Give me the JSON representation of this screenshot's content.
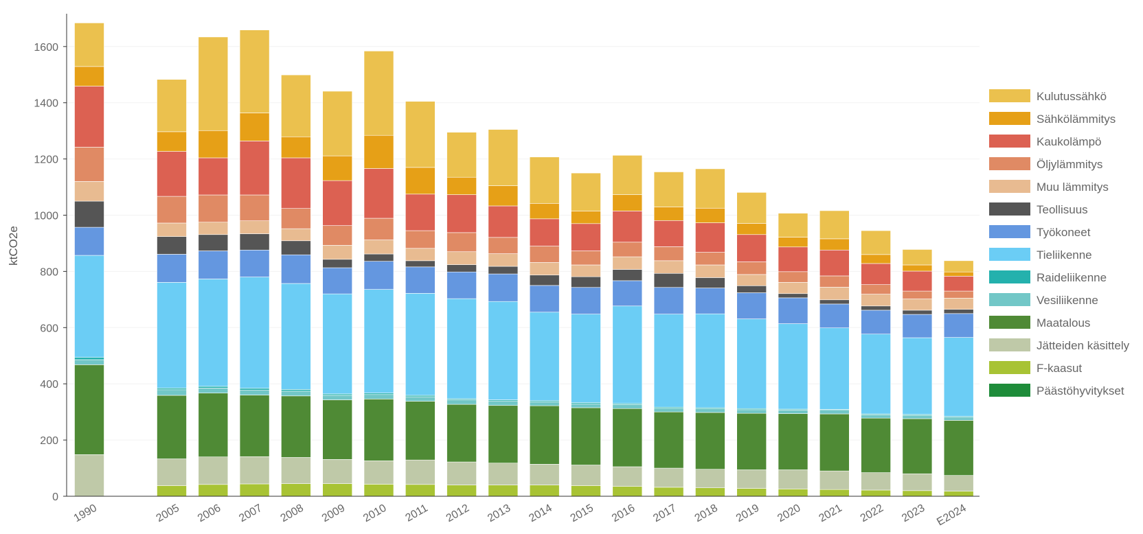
{
  "chart_data": {
    "type": "bar",
    "stacked": true,
    "ylabel": "ktCO2e",
    "ylim": [
      0,
      1700
    ],
    "yticks": [
      0,
      200,
      400,
      600,
      800,
      1000,
      1200,
      1400,
      1600
    ],
    "categories": [
      "1990",
      "2005",
      "2006",
      "2007",
      "2008",
      "2009",
      "2010",
      "2011",
      "2012",
      "2013",
      "2014",
      "2015",
      "2016",
      "2017",
      "2018",
      "2019",
      "2020",
      "2021",
      "2022",
      "2023",
      "E2024"
    ],
    "legend_position": "right",
    "series": [
      {
        "name": "Päästöhyvitykset",
        "color": "#1e8c3a",
        "values": [
          0,
          0,
          0,
          0,
          0,
          0,
          0,
          0,
          0,
          0,
          0,
          0,
          0,
          0,
          0,
          0,
          0,
          0,
          0,
          0,
          0
        ]
      },
      {
        "name": "F-kaasut",
        "color": "#a8c334",
        "values": [
          0,
          38,
          42,
          44,
          45,
          45,
          43,
          42,
          40,
          40,
          40,
          38,
          35,
          32,
          30,
          28,
          26,
          24,
          22,
          20,
          18
        ]
      },
      {
        "name": "Jätteiden käsittely",
        "color": "#bfc9a8",
        "values": [
          148,
          95,
          98,
          97,
          93,
          86,
          83,
          87,
          82,
          78,
          74,
          73,
          70,
          68,
          66,
          66,
          68,
          66,
          62,
          60,
          56
        ]
      },
      {
        "name": "Maatalous",
        "color": "#4f8a35",
        "values": [
          320,
          226,
          227,
          219,
          219,
          212,
          220,
          209,
          205,
          205,
          208,
          204,
          207,
          200,
          202,
          201,
          200,
          203,
          194,
          196,
          196
        ]
      },
      {
        "name": "Vesiliikenne",
        "color": "#72c7c7",
        "values": [
          18,
          20,
          18,
          18,
          17,
          16,
          16,
          16,
          16,
          16,
          14,
          14,
          14,
          13,
          13,
          13,
          13,
          13,
          12,
          12,
          11
        ]
      },
      {
        "name": "Raideliikenne",
        "color": "#24b1ad",
        "values": [
          8,
          6,
          6,
          6,
          6,
          5,
          5,
          5,
          4,
          4,
          4,
          4,
          4,
          4,
          4,
          4,
          3,
          3,
          3,
          3,
          3
        ]
      },
      {
        "name": "Tieliikenne",
        "color": "#6bcdf5",
        "values": [
          363,
          376,
          382,
          396,
          377,
          356,
          369,
          363,
          356,
          350,
          315,
          315,
          347,
          331,
          334,
          319,
          304,
          290,
          284,
          273,
          281
        ]
      },
      {
        "name": "Työkoneet",
        "color": "#6497e0",
        "values": [
          100,
          100,
          100,
          96,
          102,
          93,
          100,
          94,
          95,
          98,
          95,
          95,
          90,
          95,
          92,
          93,
          92,
          85,
          85,
          83,
          85
        ]
      },
      {
        "name": "Teollisuus",
        "color": "#555555",
        "values": [
          93,
          63,
          58,
          58,
          50,
          30,
          26,
          22,
          26,
          27,
          37,
          38,
          40,
          50,
          37,
          25,
          15,
          15,
          15,
          15,
          15
        ]
      },
      {
        "name": "Muu lämmitys",
        "color": "#e8bb91",
        "values": [
          70,
          48,
          44,
          46,
          43,
          50,
          50,
          44,
          46,
          45,
          45,
          42,
          45,
          45,
          45,
          40,
          40,
          45,
          42,
          40,
          40
        ]
      },
      {
        "name": "Öljylämmitys",
        "color": "#e08a64",
        "values": [
          122,
          95,
          97,
          92,
          72,
          70,
          77,
          63,
          68,
          58,
          58,
          50,
          52,
          50,
          45,
          45,
          38,
          40,
          34,
          28,
          25
        ]
      },
      {
        "name": "Kaukolämpö",
        "color": "#dc6152",
        "values": [
          217,
          160,
          132,
          192,
          180,
          160,
          177,
          130,
          135,
          112,
          97,
          97,
          111,
          93,
          105,
          97,
          88,
          92,
          75,
          71,
          53
        ]
      },
      {
        "name": "Sähkölämmitys",
        "color": "#e6a017",
        "values": [
          70,
          70,
          97,
          100,
          75,
          88,
          118,
          95,
          62,
          72,
          55,
          45,
          58,
          48,
          52,
          40,
          35,
          40,
          32,
          22,
          15
        ]
      },
      {
        "name": "Kulutussähkö",
        "color": "#ebc14e",
        "values": [
          155,
          186,
          333,
          295,
          220,
          230,
          300,
          235,
          160,
          200,
          165,
          135,
          140,
          125,
          140,
          110,
          85,
          100,
          85,
          55,
          40
        ]
      }
    ]
  }
}
